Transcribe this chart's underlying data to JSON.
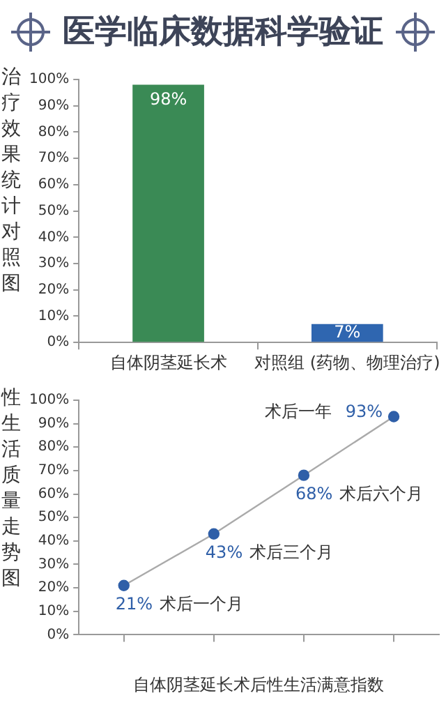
{
  "chart_data": [
    {
      "type": "bar",
      "title": "医学临床数据科学验证",
      "ylabel": "治疗效果统计对照图",
      "categories": [
        "自体阴茎延长术",
        "对照组 (药物、物理治疗)"
      ],
      "values": [
        98,
        7
      ],
      "colors": [
        "#3a8a55",
        "#2f66b0"
      ],
      "value_labels": [
        "98%",
        "7%"
      ],
      "ylim": [
        0,
        100
      ],
      "yticks": [
        {
          "value": 0,
          "label": "0%"
        },
        {
          "value": 10,
          "label": "10%"
        },
        {
          "value": 20,
          "label": "20%"
        },
        {
          "value": 30,
          "label": "30%"
        },
        {
          "value": 40,
          "label": "40%"
        },
        {
          "value": 50,
          "label": "50%"
        },
        {
          "value": 60,
          "label": "60%"
        },
        {
          "value": 70,
          "label": "70%"
        },
        {
          "value": 80,
          "label": "80%"
        },
        {
          "value": 90,
          "label": "90%"
        },
        {
          "value": 100,
          "label": "100%"
        }
      ],
      "grid": false,
      "legend": false
    },
    {
      "type": "line",
      "xlabel": "自体阴茎延长术后性生活满意指数",
      "ylabel": "性生活质量走势图",
      "categories": [
        null,
        null,
        null,
        null
      ],
      "values": [
        21,
        43,
        68,
        93
      ],
      "color": "#2f5fa8",
      "value_labels": [
        "21%",
        "43%",
        "68%",
        "93%"
      ],
      "annotations": [
        "术后一个月",
        "术后三个月",
        "术后六个月",
        "术后一年"
      ],
      "ylim": [
        0,
        100
      ],
      "yticks": [
        {
          "value": 0,
          "label": "0%"
        },
        {
          "value": 10,
          "label": "10%"
        },
        {
          "value": 20,
          "label": "20%"
        },
        {
          "value": 30,
          "label": "30%"
        },
        {
          "value": 40,
          "label": "40%"
        },
        {
          "value": 50,
          "label": "50%"
        },
        {
          "value": 60,
          "label": "60%"
        },
        {
          "value": 70,
          "label": "70%"
        },
        {
          "value": 80,
          "label": "80%"
        },
        {
          "value": 90,
          "label": "90%"
        },
        {
          "value": 100,
          "label": "100%"
        }
      ],
      "grid": false,
      "legend": false,
      "marker": "circle",
      "line_style": "solid"
    }
  ]
}
